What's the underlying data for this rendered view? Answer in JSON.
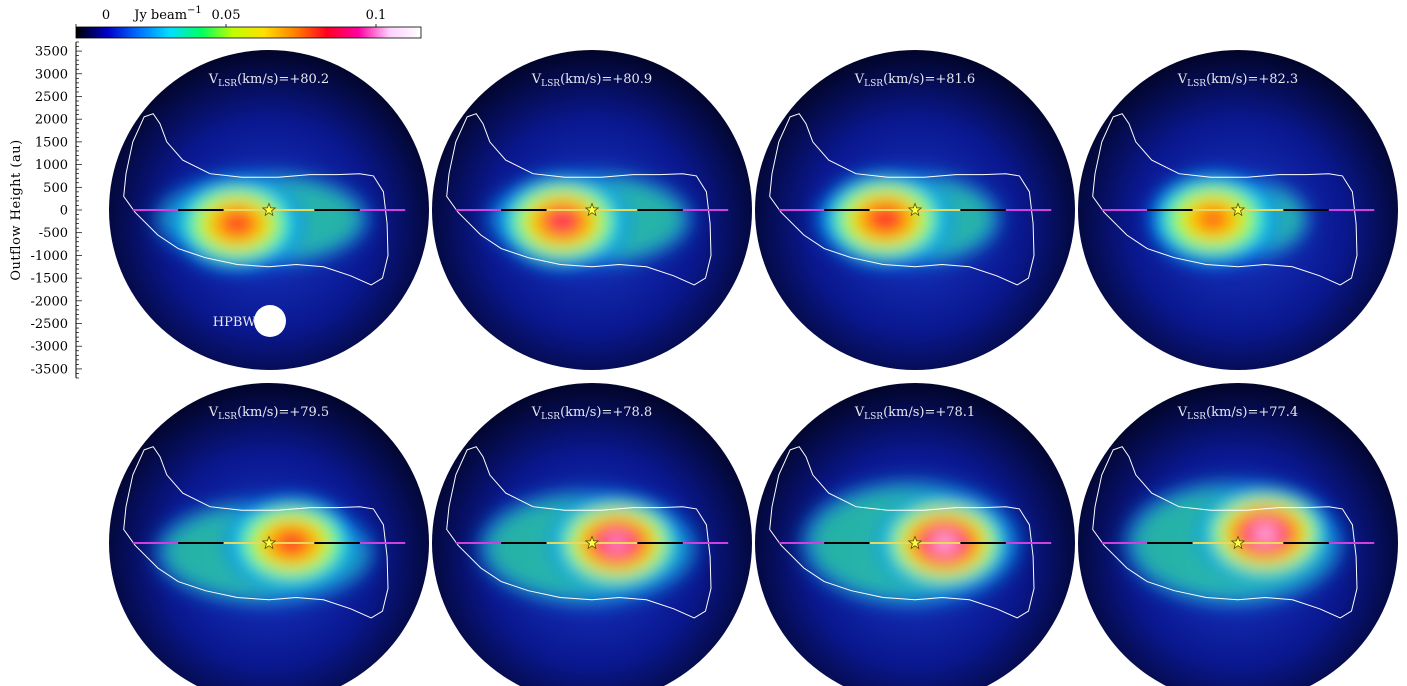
{
  "colorbar": {
    "tick_labels": [
      "0",
      "0.05",
      "0.1"
    ],
    "tick_values": [
      0,
      0.05,
      0.1
    ],
    "unit_text": "Jy beam",
    "unit_exponent": "−1",
    "range": [
      0,
      0.115
    ],
    "stops": [
      "#000000",
      "#0000c8",
      "#0070ff",
      "#00e0ff",
      "#00ff60",
      "#c0ff00",
      "#ffe000",
      "#ff8000",
      "#ff0020",
      "#ff00a0",
      "#ffd0ff",
      "#ffffff"
    ]
  },
  "label_text": {
    "prefix": "V",
    "subscript": "LSR",
    "suffix": "(km/s)="
  },
  "beam_label": "HPBW:",
  "chart_data": {
    "type": "heatmap",
    "ylabel": "Outflow Height (au)",
    "ylim": [
      -3700,
      3700
    ],
    "y_ticks": [
      3500,
      3000,
      2500,
      2000,
      1500,
      1000,
      500,
      0,
      -500,
      -1000,
      -1500,
      -2000,
      -2500,
      -3000,
      -3500
    ],
    "rows": 2,
    "cols": 4,
    "panels": [
      {
        "velocity_kms": 80.2,
        "label": "+80.2",
        "peak_flux": 0.087,
        "peak_offset_au": [
          -700,
          -300
        ],
        "emission_extent_au": [
          [
            -2400,
            2100
          ],
          [
            -1100,
            700
          ]
        ]
      },
      {
        "velocity_kms": 80.9,
        "label": "+80.9",
        "peak_flux": 0.094,
        "peak_offset_au": [
          -650,
          -250
        ],
        "emission_extent_au": [
          [
            -2200,
            2100
          ],
          [
            -1100,
            700
          ]
        ]
      },
      {
        "velocity_kms": 81.6,
        "label": "+81.6",
        "peak_flux": 0.092,
        "peak_offset_au": [
          -650,
          -200
        ],
        "emission_extent_au": [
          [
            -2100,
            1800
          ],
          [
            -1100,
            700
          ]
        ]
      },
      {
        "velocity_kms": 82.3,
        "label": "+82.3",
        "peak_flux": 0.08,
        "peak_offset_au": [
          -550,
          -200
        ],
        "emission_extent_au": [
          [
            -1600,
            1500
          ],
          [
            -1000,
            600
          ]
        ]
      },
      {
        "velocity_kms": 79.5,
        "label": "+79.5",
        "peak_flux": 0.088,
        "peak_offset_au": [
          500,
          0
        ],
        "emission_extent_au": [
          [
            -2400,
            2200
          ],
          [
            -1200,
            800
          ]
        ]
      },
      {
        "velocity_kms": 78.8,
        "label": "+78.8",
        "peak_flux": 0.11,
        "peak_offset_au": [
          550,
          0
        ],
        "emission_extent_au": [
          [
            -2400,
            2200
          ],
          [
            -1200,
            1000
          ]
        ]
      },
      {
        "velocity_kms": 78.1,
        "label": "+78.1",
        "peak_flux": 0.115,
        "peak_offset_au": [
          650,
          0
        ],
        "emission_extent_au": [
          [
            -2400,
            2200
          ],
          [
            -1200,
            1200
          ]
        ]
      },
      {
        "velocity_kms": 77.4,
        "label": "+77.4",
        "peak_flux": 0.115,
        "peak_offset_au": [
          600,
          200
        ],
        "emission_extent_au": [
          [
            -2400,
            2200
          ],
          [
            -1200,
            1200
          ]
        ]
      }
    ]
  },
  "colors": {
    "panel_background": "#000010",
    "contour": "#ffffff",
    "axis_line": "#d040e0",
    "axis_segment_dark": "#000000",
    "axis_segment_light": "#e8d860",
    "star_fill": "#ffff40",
    "star_stroke": "#505000",
    "label_text": "#e8e8f0",
    "beam": "#ffffff"
  }
}
